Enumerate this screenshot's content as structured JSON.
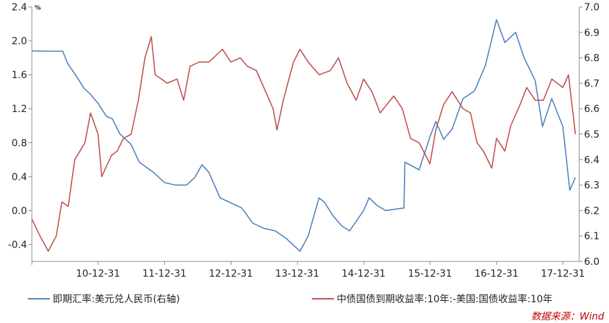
{
  "chart_data": {
    "type": "line",
    "x_ticks": [
      "10-12-31",
      "11-12-31",
      "12-12-31",
      "13-12-31",
      "14-12-31",
      "15-12-31",
      "16-12-31",
      "17-12-31"
    ],
    "x_range": [
      "2010-01-01",
      "2018-03-31"
    ],
    "y_left": {
      "unit_label": "%",
      "min": -0.6,
      "max": 2.4,
      "ticks": [
        "2.4",
        "2.0",
        "1.6",
        "1.2",
        "0.8",
        "0.4",
        "0.0",
        "-0.4"
      ]
    },
    "y_right": {
      "min": 6.0,
      "max": 7.0,
      "ticks": [
        "7.0",
        "6.9",
        "6.8",
        "6.7",
        "6.6",
        "6.5",
        "6.4",
        "6.3",
        "6.2",
        "6.1",
        "6.0"
      ]
    },
    "series": [
      {
        "name": "即期汇率:美元兑人民币(右轴)",
        "axis": "right",
        "color": "#4f81bd",
        "points": [
          [
            "2010-01-01",
            6.827
          ],
          [
            "2010-04-01",
            6.826
          ],
          [
            "2010-06-20",
            6.826
          ],
          [
            "2010-07-15",
            6.78
          ],
          [
            "2010-09-01",
            6.73
          ],
          [
            "2010-10-15",
            6.68
          ],
          [
            "2010-11-15",
            6.66
          ],
          [
            "2011-01-01",
            6.62
          ],
          [
            "2011-02-15",
            6.57
          ],
          [
            "2011-03-20",
            6.56
          ],
          [
            "2011-05-01",
            6.5
          ],
          [
            "2011-06-30",
            6.46
          ],
          [
            "2011-08-15",
            6.39
          ],
          [
            "2011-11-01",
            6.35
          ],
          [
            "2011-12-31",
            6.31
          ],
          [
            "2012-03-01",
            6.3
          ],
          [
            "2012-05-01",
            6.3
          ],
          [
            "2012-06-15",
            6.33
          ],
          [
            "2012-07-25",
            6.38
          ],
          [
            "2012-09-01",
            6.35
          ],
          [
            "2012-11-01",
            6.25
          ],
          [
            "2012-12-31",
            6.23
          ],
          [
            "2013-03-01",
            6.21
          ],
          [
            "2013-05-01",
            6.15
          ],
          [
            "2013-07-01",
            6.13
          ],
          [
            "2013-09-01",
            6.12
          ],
          [
            "2013-11-01",
            6.09
          ],
          [
            "2013-12-31",
            6.05
          ],
          [
            "2014-01-15",
            6.04
          ],
          [
            "2014-03-01",
            6.1
          ],
          [
            "2014-04-30",
            6.25
          ],
          [
            "2014-06-01",
            6.23
          ],
          [
            "2014-07-15",
            6.18
          ],
          [
            "2014-09-01",
            6.14
          ],
          [
            "2014-10-15",
            6.12
          ],
          [
            "2014-12-31",
            6.2
          ],
          [
            "2015-01-30",
            6.25
          ],
          [
            "2015-03-15",
            6.22
          ],
          [
            "2015-05-01",
            6.2
          ],
          [
            "2015-08-10",
            6.21
          ],
          [
            "2015-08-15",
            6.39
          ],
          [
            "2015-11-01",
            6.36
          ],
          [
            "2015-12-31",
            6.49
          ],
          [
            "2016-02-01",
            6.55
          ],
          [
            "2016-03-15",
            6.48
          ],
          [
            "2016-05-01",
            6.52
          ],
          [
            "2016-06-30",
            6.64
          ],
          [
            "2016-09-01",
            6.67
          ],
          [
            "2016-10-31",
            6.77
          ],
          [
            "2016-12-31",
            6.95
          ],
          [
            "2017-02-15",
            6.86
          ],
          [
            "2017-04-15",
            6.9
          ],
          [
            "2017-06-01",
            6.8
          ],
          [
            "2017-08-01",
            6.71
          ],
          [
            "2017-09-10",
            6.53
          ],
          [
            "2017-10-31",
            6.64
          ],
          [
            "2017-12-31",
            6.53
          ],
          [
            "2018-02-07",
            6.28
          ],
          [
            "2018-03-10",
            6.33
          ]
        ]
      },
      {
        "name": "中债国债到期收益率:10年:-美国:国债收益率:10年",
        "axis": "left",
        "color": "#c0504d",
        "points": [
          [
            "2010-01-01",
            -0.1
          ],
          [
            "2010-02-15",
            -0.3
          ],
          [
            "2010-04-01",
            -0.48
          ],
          [
            "2010-05-15",
            -0.3
          ],
          [
            "2010-06-15",
            0.1
          ],
          [
            "2010-07-20",
            0.05
          ],
          [
            "2010-08-25",
            0.6
          ],
          [
            "2010-10-20",
            0.8
          ],
          [
            "2010-11-20",
            1.15
          ],
          [
            "2010-12-31",
            0.9
          ],
          [
            "2011-01-20",
            0.4
          ],
          [
            "2011-03-15",
            0.65
          ],
          [
            "2011-04-15",
            0.7
          ],
          [
            "2011-05-20",
            0.85
          ],
          [
            "2011-07-01",
            0.9
          ],
          [
            "2011-08-10",
            1.3
          ],
          [
            "2011-09-15",
            1.8
          ],
          [
            "2011-10-20",
            2.05
          ],
          [
            "2011-11-10",
            1.6
          ],
          [
            "2011-12-15",
            1.55
          ],
          [
            "2012-01-15",
            1.5
          ],
          [
            "2012-03-10",
            1.55
          ],
          [
            "2012-04-15",
            1.3
          ],
          [
            "2012-05-20",
            1.7
          ],
          [
            "2012-07-10",
            1.75
          ],
          [
            "2012-09-01",
            1.75
          ],
          [
            "2012-11-15",
            1.9
          ],
          [
            "2012-12-31",
            1.75
          ],
          [
            "2013-02-20",
            1.8
          ],
          [
            "2013-04-01",
            1.7
          ],
          [
            "2013-05-20",
            1.65
          ],
          [
            "2013-06-30",
            1.45
          ],
          [
            "2013-08-20",
            1.2
          ],
          [
            "2013-09-10",
            0.95
          ],
          [
            "2013-10-15",
            1.3
          ],
          [
            "2013-12-10",
            1.75
          ],
          [
            "2014-01-15",
            1.9
          ],
          [
            "2014-03-01",
            1.75
          ],
          [
            "2014-05-01",
            1.6
          ],
          [
            "2014-07-01",
            1.65
          ],
          [
            "2014-08-15",
            1.8
          ],
          [
            "2014-10-01",
            1.5
          ],
          [
            "2014-11-20",
            1.3
          ],
          [
            "2014-12-31",
            1.55
          ],
          [
            "2015-02-15",
            1.4
          ],
          [
            "2015-04-01",
            1.15
          ],
          [
            "2015-06-15",
            1.35
          ],
          [
            "2015-08-01",
            1.2
          ],
          [
            "2015-09-15",
            0.85
          ],
          [
            "2015-11-01",
            0.8
          ],
          [
            "2015-12-31",
            0.55
          ],
          [
            "2016-02-01",
            0.95
          ],
          [
            "2016-03-15",
            1.25
          ],
          [
            "2016-05-01",
            1.4
          ],
          [
            "2016-06-30",
            1.2
          ],
          [
            "2016-08-10",
            1.15
          ],
          [
            "2016-09-15",
            0.8
          ],
          [
            "2016-10-20",
            0.7
          ],
          [
            "2016-12-05",
            0.5
          ],
          [
            "2016-12-31",
            0.85
          ],
          [
            "2017-02-15",
            0.7
          ],
          [
            "2017-03-20",
            1.0
          ],
          [
            "2017-05-10",
            1.25
          ],
          [
            "2017-06-15",
            1.45
          ],
          [
            "2017-08-01",
            1.3
          ],
          [
            "2017-09-15",
            1.3
          ],
          [
            "2017-10-31",
            1.55
          ],
          [
            "2017-12-31",
            1.45
          ],
          [
            "2018-01-31",
            1.6
          ],
          [
            "2018-03-10",
            0.9
          ]
        ]
      }
    ]
  },
  "source_label": "数据来源：Wind"
}
